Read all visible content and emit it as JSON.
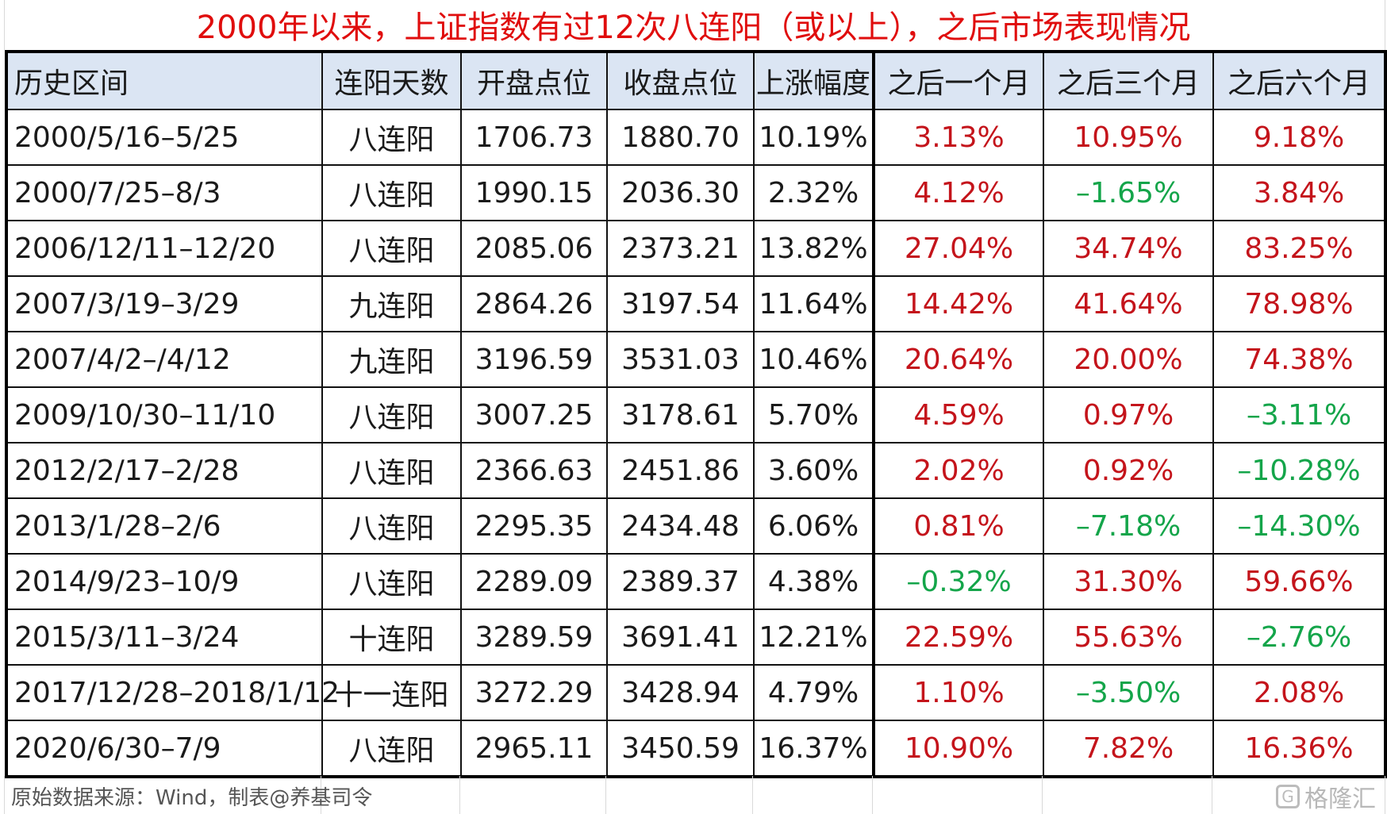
{
  "title": "2000年以来，上证指数有过12次八连阳（或以上），之后市场表现情况",
  "table": {
    "headers": [
      "历史区间",
      "连阳天数",
      "开盘点位",
      "收盘点位",
      "上涨幅度",
      "之后一个月",
      "之后三个月",
      "之后六个月"
    ],
    "rows": [
      [
        "2000/5/16–5/25",
        "八连阳",
        "1706.73",
        "1880.70",
        "10.19%",
        "3.13%",
        "10.95%",
        "9.18%"
      ],
      [
        "2000/7/25–8/3",
        "八连阳",
        "1990.15",
        "2036.30",
        "2.32%",
        "4.12%",
        "–1.65%",
        "3.84%"
      ],
      [
        "2006/12/11–12/20",
        "八连阳",
        "2085.06",
        "2373.21",
        "13.82%",
        "27.04%",
        "34.74%",
        "83.25%"
      ],
      [
        "2007/3/19–3/29",
        "九连阳",
        "2864.26",
        "3197.54",
        "11.64%",
        "14.42%",
        "41.64%",
        "78.98%"
      ],
      [
        "2007/4/2–/4/12",
        "九连阳",
        "3196.59",
        "3531.03",
        "10.46%",
        "20.64%",
        "20.00%",
        "74.38%"
      ],
      [
        "2009/10/30–11/10",
        "八连阳",
        "3007.25",
        "3178.61",
        "5.70%",
        "4.59%",
        "0.97%",
        "–3.11%"
      ],
      [
        "2012/2/17–2/28",
        "八连阳",
        "2366.63",
        "2451.86",
        "3.60%",
        "2.02%",
        "0.92%",
        "–10.28%"
      ],
      [
        "2013/1/28–2/6",
        "八连阳",
        "2295.35",
        "2434.48",
        "6.06%",
        "0.81%",
        "–7.18%",
        "–14.30%"
      ],
      [
        "2014/9/23–10/9",
        "八连阳",
        "2289.09",
        "2389.37",
        "4.38%",
        "–0.32%",
        "31.30%",
        "59.66%"
      ],
      [
        "2015/3/11–3/24",
        "十连阳",
        "3289.59",
        "3691.41",
        "12.21%",
        "22.59%",
        "55.63%",
        "–2.76%"
      ],
      [
        "2017/12/28–2018/1/12",
        "十一连阳",
        "3272.29",
        "3428.94",
        "4.79%",
        "1.10%",
        "–3.50%",
        "2.08%"
      ],
      [
        "2020/6/30–7/9",
        "八连阳",
        "2965.11",
        "3450.59",
        "16.37%",
        "10.90%",
        "7.82%",
        "16.36%"
      ]
    ]
  },
  "source": "原始数据来源：Wind，制表@养基司令",
  "watermark": "格隆汇",
  "colors": {
    "title": "#e00d0d",
    "positive": "#c4141b",
    "negative": "#14a54a",
    "header_bg": "#dbe5f3"
  }
}
